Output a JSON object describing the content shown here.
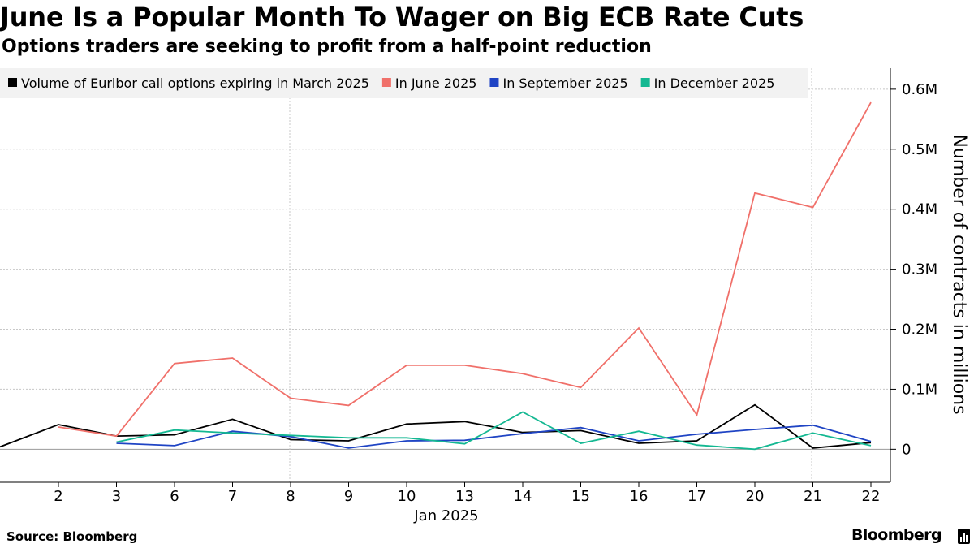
{
  "header": {
    "title": "June Is a Popular Month To Wager on Big ECB Rate Cuts",
    "subtitle": "Options traders are seeking to profit from a half-point reduction"
  },
  "footer": {
    "source": "Source: Bloomberg",
    "brand": "Bloomberg"
  },
  "chart_data": {
    "type": "line",
    "title": "June Is a Popular Month To Wager on Big ECB Rate Cuts",
    "subtitle": "Options traders are seeking to profit from a half-point reduction",
    "xlabel": "Jan 2025",
    "ylabel": "Number of contracts in millions",
    "categories": [
      "2",
      "3",
      "6",
      "7",
      "8",
      "9",
      "10",
      "13",
      "14",
      "15",
      "16",
      "17",
      "20",
      "21",
      "22"
    ],
    "ylim": [
      -0.055,
      0.635
    ],
    "yticks": [
      0,
      0.1,
      0.2,
      0.3,
      0.4,
      0.5,
      0.6
    ],
    "ytick_labels": [
      "0",
      "0.1M",
      "0.2M",
      "0.3M",
      "0.4M",
      "0.5M",
      "0.6M"
    ],
    "y_axis_side": "right",
    "grid": true,
    "legend_position": "top-left",
    "series": [
      {
        "name": "Volume of Euribor call options expiring in March 2025",
        "color": "#000000",
        "lead_in_value": 0.004,
        "values": [
          0.041,
          0.022,
          0.024,
          0.05,
          0.016,
          0.014,
          0.042,
          0.046,
          0.028,
          0.031,
          0.01,
          0.014,
          0.074,
          0.002,
          0.011
        ]
      },
      {
        "name": "In June 2025",
        "color": "#f0706a",
        "values": [
          0.037,
          0.022,
          0.143,
          0.152,
          0.085,
          0.073,
          0.14,
          0.14,
          0.126,
          0.103,
          0.202,
          0.057,
          0.427,
          0.403,
          0.578
        ]
      },
      {
        "name": "In September 2025",
        "color": "#1f44c4",
        "values": [
          null,
          0.01,
          0.006,
          0.03,
          0.021,
          0.002,
          0.014,
          0.015,
          0.026,
          0.036,
          0.014,
          0.025,
          0.033,
          0.04,
          0.013
        ]
      },
      {
        "name": "In December 2025",
        "color": "#14b892",
        "values": [
          null,
          0.012,
          0.032,
          0.027,
          0.023,
          0.019,
          0.019,
          0.009,
          0.062,
          0.01,
          0.03,
          0.007,
          0.0,
          0.027,
          0.006
        ]
      }
    ]
  }
}
